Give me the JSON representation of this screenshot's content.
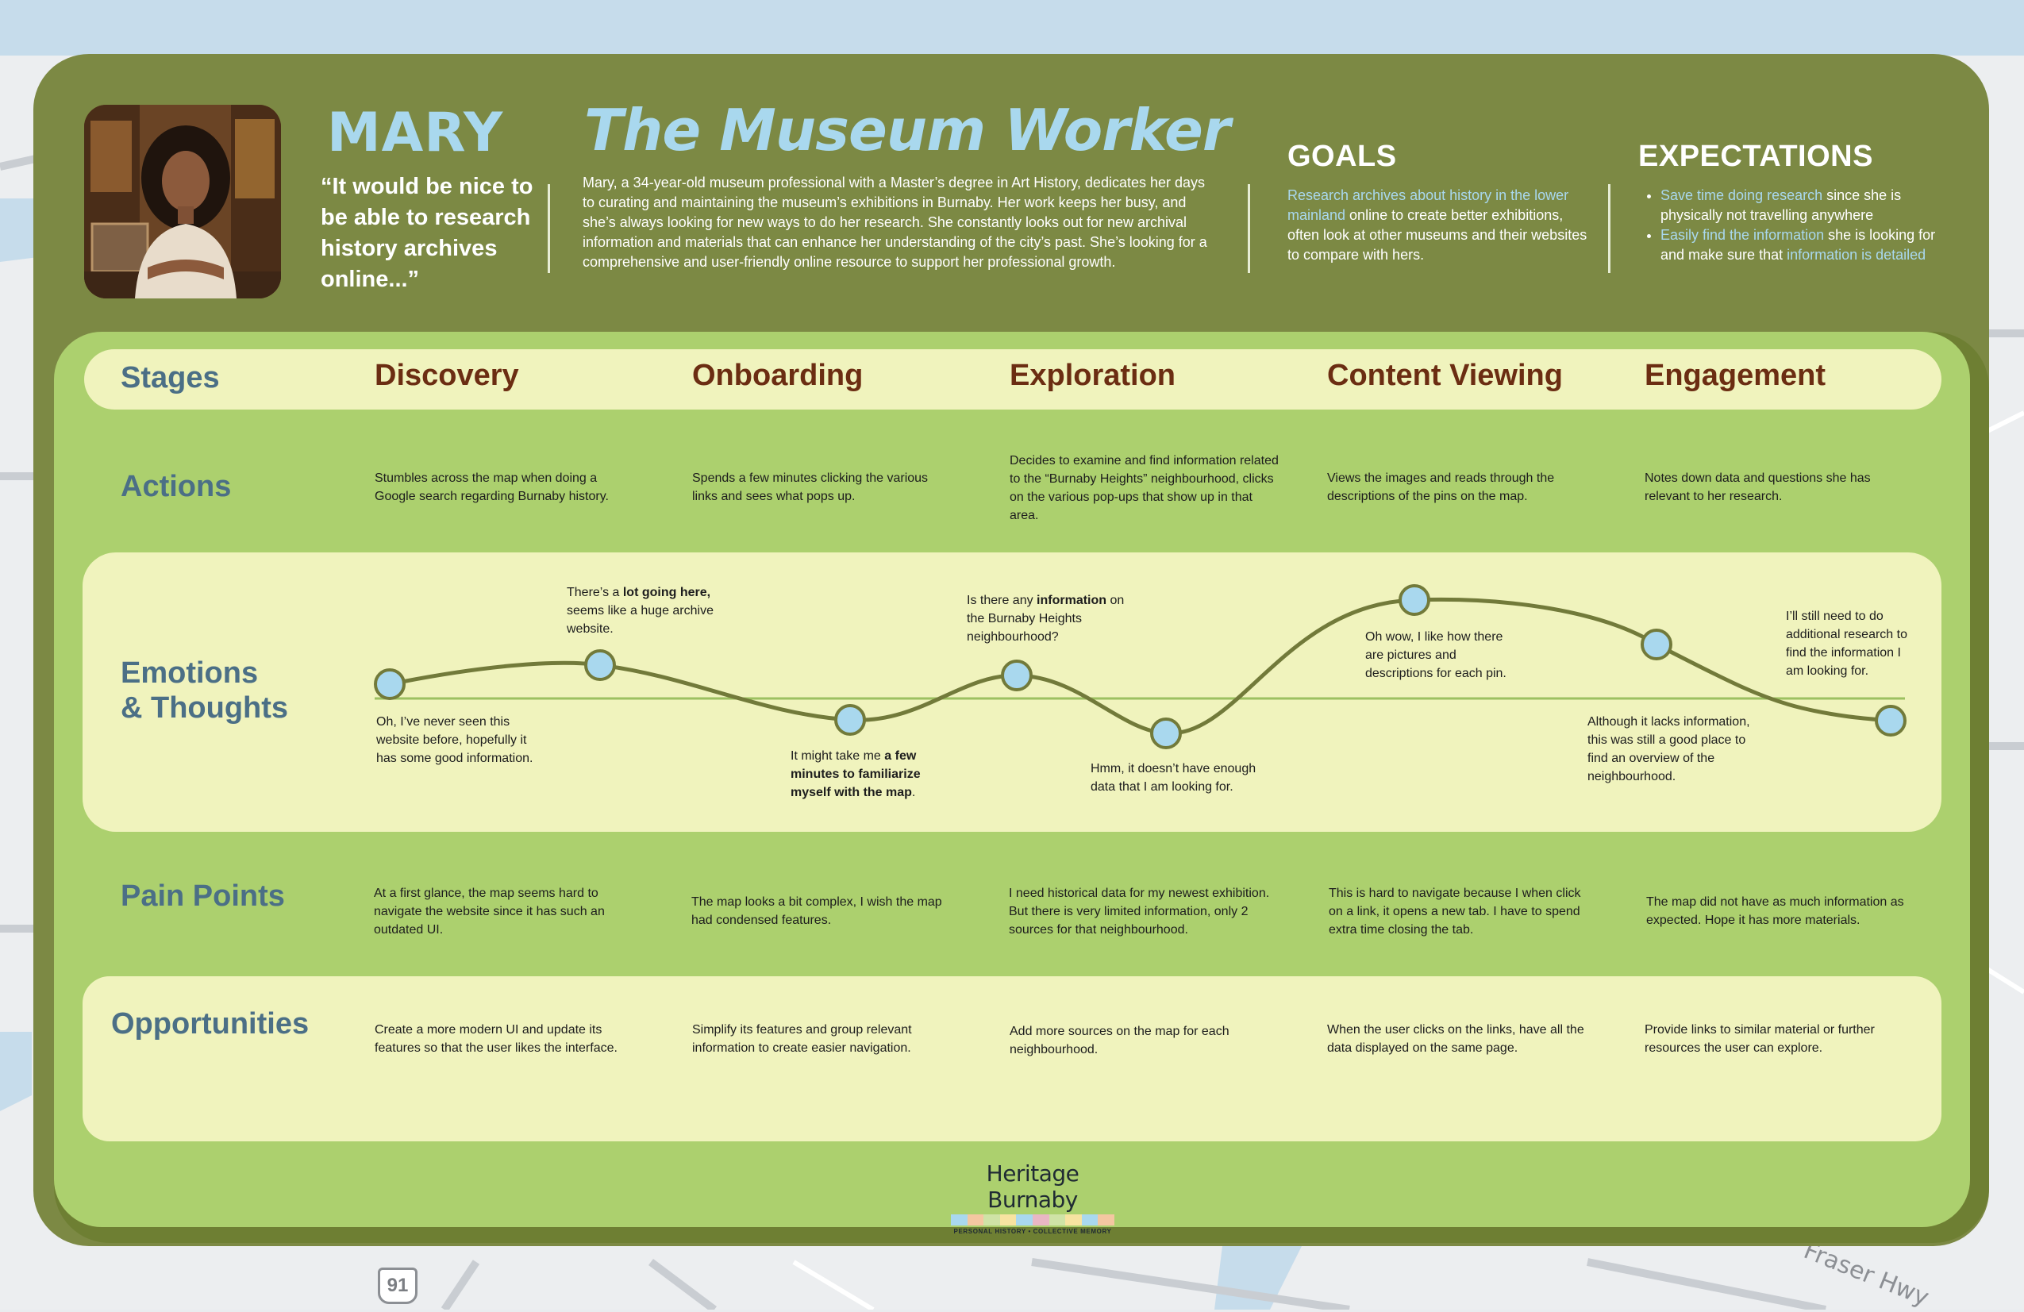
{
  "persona": {
    "name": "MARY",
    "title": "The Museum Worker",
    "quote": "“It would be nice to be able to research history archives online...”",
    "bio": "Mary, a 34-year-old museum professional with a Master’s degree in Art History, dedicates her days to curating and maintaining the museum’s exhibitions in Burnaby. Her work keeps her busy, and she’s always looking for new ways to do her research. She constantly looks out for new archival information and materials that can enhance her understanding of the city’s past. She’s looking for a comprehensive and user-friendly online resource to support her professional growth."
  },
  "goals": {
    "heading": "GOALS",
    "highlight": "Research archives about history in the lower mainland",
    "text": " online to create better exhibitions, often look at other museums and their websites to compare with hers."
  },
  "expectations": {
    "heading": "EXPECTATIONS",
    "items": [
      {
        "highlight": "Save time doing research",
        "text": " since she is physically not travelling anywhere",
        "highlight2": ""
      },
      {
        "highlight": "Easily find the information",
        "text": " she is looking for and make sure that ",
        "highlight2": "information is detailed"
      }
    ]
  },
  "rows": {
    "stages": "Stages",
    "actions": "Actions",
    "emotions": "Emotions\n& Thoughts",
    "pain_points": "Pain Points",
    "opportunities": "Opportunities"
  },
  "stages": [
    "Discovery",
    "Onboarding",
    "Exploration",
    "Content Viewing",
    "Engagement"
  ],
  "actions": [
    "Stumbles across the map when doing a Google search regarding Burnaby history.",
    "Spends a few minutes clicking the various links and sees what pops up.",
    "Decides to examine and find information related to the “Burnaby Heights” neighbourhood, clicks on the various pop-ups that show up in that area.",
    "Views the images and reads through the descriptions of the pins on the map.",
    "Notes down data and questions she has relevant to her research."
  ],
  "pain_points": [
    "At a first glance, the map seems hard to navigate the website since it has such an outdated UI.",
    "The map looks a bit complex, I wish the map had condensed features.",
    "I need historical data for my newest exhibition. But there is very limited information, only 2 sources for that neighbourhood.",
    "This is hard to navigate because I when click on a link, it opens a new tab. I have to spend extra time closing the tab.",
    "The map did not have as much information as expected. Hope it has more materials."
  ],
  "opportunities": [
    "Create a more modern UI and update its features so that the user likes the interface.",
    "Simplify its features and group relevant information to create easier navigation.",
    "Add more sources on the map for each neighbourhood.",
    "When the user clicks on the links, have all the data displayed on the same page.",
    "Provide links to similar material or further resources the user can explore."
  ],
  "emotions": [
    {
      "parts": [
        {
          "t": "Oh, I’ve never seen this website before, hopefully it has some good information.",
          "b": false
        }
      ]
    },
    {
      "parts": [
        {
          "t": "There’s a ",
          "b": false
        },
        {
          "t": "lot going here,",
          "b": true
        },
        {
          "t": " seems like a huge archive website.",
          "b": false
        }
      ]
    },
    {
      "parts": [
        {
          "t": "It might take me ",
          "b": false
        },
        {
          "t": "a few minutes to familiarize myself with the map",
          "b": true
        },
        {
          "t": ".",
          "b": false
        }
      ]
    },
    {
      "parts": [
        {
          "t": "Is there any ",
          "b": false
        },
        {
          "t": "information",
          "b": true
        },
        {
          "t": " on the Burnaby Heights neighbourhood?",
          "b": false
        }
      ]
    },
    {
      "parts": [
        {
          "t": "Hmm, it doesn’t have enough data that I am looking for.",
          "b": false
        }
      ]
    },
    {
      "parts": [
        {
          "t": "Oh wow, I like how there are pictures and descriptions for each pin.",
          "b": false
        }
      ]
    },
    {
      "parts": [
        {
          "t": "Although it lacks information, this was still a good place to find an overview of the neighbourhood.",
          "b": false
        }
      ]
    },
    {
      "parts": [
        {
          "t": "I’ll still need to do additional research to find the information I am looking for.",
          "b": false
        }
      ]
    }
  ],
  "colors": {
    "card": "#7c8944",
    "inner": "#acd06e",
    "band": "#f0f3bd",
    "accent_blue": "#a9d8ee",
    "stage_brown": "#6b2d12",
    "label_blue": "#4b6f86",
    "curve": "#727a3a"
  },
  "logo": {
    "name": "Heritage Burnaby",
    "tagline": "PERSONAL HISTORY • COLLECTIVE MEMORY"
  },
  "map": {
    "labels": [
      "Fraser Hwy",
      "91"
    ]
  }
}
